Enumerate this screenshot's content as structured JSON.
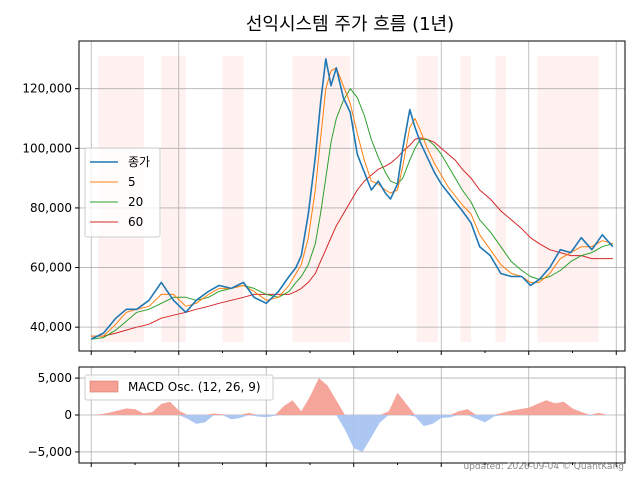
{
  "title": "선익시스템 주가 흐름 (1년)",
  "footer": "updated: 2026-09-04 © QuantKang",
  "colors": {
    "close": "#1f77b4",
    "ma5": "#ff7f0e",
    "ma20": "#2ca02c",
    "ma60": "#d62728",
    "shade": "#fde8e4",
    "macd_pos": "#f4a095",
    "macd_neg": "#a9c4f2",
    "grid": "#b0b0b0"
  },
  "chart_data": [
    {
      "type": "line",
      "title": "선익시스템 주가 흐름 (1년)",
      "ylim": [
        32000,
        136000
      ],
      "yticks": [
        40000,
        60000,
        80000,
        100000,
        120000
      ],
      "ytick_labels": [
        "40,000",
        "60,000",
        "80,000",
        "100,000",
        "120,000"
      ],
      "grid": true,
      "legend_position": "center-left",
      "x": [
        0,
        7,
        14,
        20,
        26,
        33,
        40,
        47,
        54,
        60,
        67,
        73,
        80,
        87,
        93,
        100,
        107,
        113,
        117,
        120,
        124,
        128,
        131,
        134,
        137,
        140,
        144,
        148,
        152,
        156,
        160,
        164,
        168,
        171,
        175,
        178,
        182,
        185,
        188,
        192,
        196,
        200,
        204,
        208,
        212,
        217,
        222,
        228,
        234,
        240,
        246,
        251,
        256,
        262,
        268,
        274,
        280,
        286,
        292,
        298
      ],
      "xlim": [
        -7,
        305
      ],
      "shaded_spans": [
        [
          4,
          30
        ],
        [
          40,
          54
        ],
        [
          75,
          87
        ],
        [
          115,
          148
        ],
        [
          186,
          198
        ],
        [
          211,
          217
        ],
        [
          231,
          237
        ],
        [
          255,
          290
        ]
      ],
      "series": [
        {
          "name": "종가",
          "values": [
            36000,
            38000,
            43000,
            46000,
            46000,
            49000,
            55000,
            49000,
            45000,
            49000,
            52000,
            54000,
            53000,
            55000,
            50000,
            48000,
            52000,
            57000,
            60000,
            64000,
            78000,
            97000,
            115000,
            130000,
            121000,
            127000,
            117000,
            112000,
            98000,
            92000,
            86000,
            89000,
            85000,
            83000,
            88000,
            100000,
            113000,
            107000,
            102000,
            97000,
            92000,
            88000,
            85000,
            82000,
            79000,
            75000,
            67000,
            64000,
            58000,
            57000,
            57000,
            54000,
            56000,
            60000,
            66000,
            65000,
            70000,
            66000,
            71000,
            67000
          ]
        },
        {
          "name": "5",
          "values": [
            37000,
            37000,
            41000,
            45000,
            46000,
            47000,
            51000,
            51000,
            47000,
            48000,
            51000,
            53000,
            53000,
            54000,
            52000,
            49000,
            50000,
            54000,
            58000,
            61000,
            70000,
            86000,
            103000,
            120000,
            126000,
            127000,
            121000,
            115000,
            105000,
            96000,
            89000,
            88000,
            86000,
            85000,
            86000,
            94000,
            107000,
            110000,
            106000,
            100000,
            95000,
            91000,
            87000,
            84000,
            81000,
            78000,
            71000,
            66000,
            61000,
            58000,
            57000,
            55000,
            55000,
            58000,
            63000,
            65000,
            67000,
            67000,
            69000,
            68000
          ]
        },
        {
          "name": "20",
          "values": [
            36000,
            36500,
            39000,
            42000,
            45000,
            46000,
            48000,
            50000,
            50000,
            49000,
            50000,
            52000,
            53000,
            54000,
            53000,
            51000,
            50000,
            52000,
            55000,
            57000,
            61000,
            68000,
            78000,
            90000,
            102000,
            110000,
            116000,
            120000,
            117000,
            111000,
            103000,
            97000,
            92000,
            89000,
            88000,
            90000,
            96000,
            100000,
            103000,
            103000,
            101000,
            98000,
            94000,
            90000,
            86000,
            82000,
            76000,
            72000,
            67000,
            62000,
            59000,
            57000,
            56000,
            57000,
            59000,
            62000,
            64000,
            65000,
            67000,
            68000
          ]
        },
        {
          "name": "60",
          "values": [
            37000,
            37000,
            38000,
            39000,
            40000,
            41000,
            43000,
            44000,
            45000,
            46000,
            47000,
            48000,
            49000,
            50000,
            51000,
            51000,
            51000,
            51000,
            52000,
            53000,
            55000,
            58000,
            62000,
            66000,
            70000,
            74000,
            78000,
            82000,
            86000,
            89000,
            91000,
            93000,
            94000,
            95000,
            97000,
            99000,
            101000,
            103000,
            103500,
            103000,
            102000,
            100000,
            98000,
            96000,
            93000,
            90000,
            86000,
            83000,
            79000,
            76000,
            73000,
            70000,
            68000,
            66000,
            65000,
            64000,
            64000,
            63000,
            63000,
            63000
          ]
        }
      ]
    },
    {
      "type": "area",
      "ylim": [
        -6500,
        6500
      ],
      "yticks": [
        -5000,
        0,
        5000
      ],
      "ytick_labels": [
        "−5,000",
        "0",
        "5,000"
      ],
      "grid": true,
      "legend_position": "top-left",
      "x": [
        0,
        5,
        10,
        15,
        20,
        25,
        30,
        35,
        40,
        45,
        50,
        55,
        60,
        65,
        70,
        75,
        80,
        85,
        90,
        95,
        100,
        105,
        110,
        115,
        120,
        125,
        130,
        135,
        140,
        145,
        150,
        155,
        160,
        165,
        170,
        175,
        180,
        185,
        190,
        195,
        200,
        205,
        210,
        215,
        220,
        225,
        230,
        235,
        240,
        245,
        250,
        255,
        260,
        265,
        270,
        275,
        280,
        285,
        290,
        295,
        298
      ],
      "xlim": [
        -7,
        305
      ],
      "series": [
        {
          "name": "MACD Osc. (12, 26, 9)",
          "values": [
            0,
            100,
            300,
            600,
            900,
            800,
            200,
            400,
            1500,
            1800,
            600,
            -500,
            -1200,
            -1000,
            200,
            100,
            -600,
            -400,
            300,
            -200,
            -300,
            -100,
            1200,
            2000,
            500,
            2500,
            5000,
            4000,
            2000,
            -2000,
            -4500,
            -5000,
            -3000,
            -1000,
            500,
            3000,
            1500,
            -200,
            -1500,
            -1200,
            -400,
            -300,
            500,
            800,
            -500,
            -1000,
            -200,
            300,
            600,
            800,
            1000,
            1500,
            2000,
            1600,
            1800,
            900,
            400,
            -100,
            300,
            0,
            0
          ]
        }
      ]
    }
  ]
}
